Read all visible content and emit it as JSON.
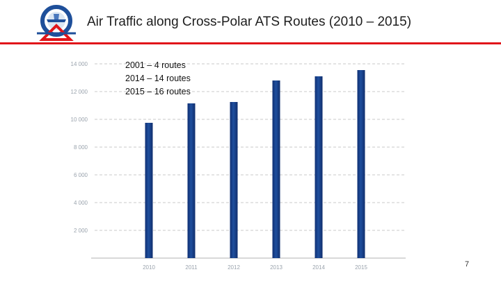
{
  "header": {
    "title": "Air Traffic along Cross-Polar ATS Routes (2010 – 2015)",
    "rule_color": "#e1151a"
  },
  "logo": {
    "icon": "aviation-emblem-icon"
  },
  "notes": [
    "2001 – 4 routes",
    "2014 – 14 routes",
    "2015 – 16 routes"
  ],
  "chart_data": {
    "type": "bar",
    "categories": [
      "2010",
      "2011",
      "2012",
      "2013",
      "2014",
      "2015"
    ],
    "values": [
      9750,
      11150,
      11250,
      12800,
      13100,
      13550
    ],
    "yticks": [
      "2 000",
      "4 000",
      "6 000",
      "8 000",
      "10 000",
      "12 000",
      "14 000"
    ],
    "ylim": [
      0,
      14000
    ],
    "grid": true,
    "bar_color": "#1f4f9e"
  },
  "footer": {
    "page_number": "7"
  }
}
